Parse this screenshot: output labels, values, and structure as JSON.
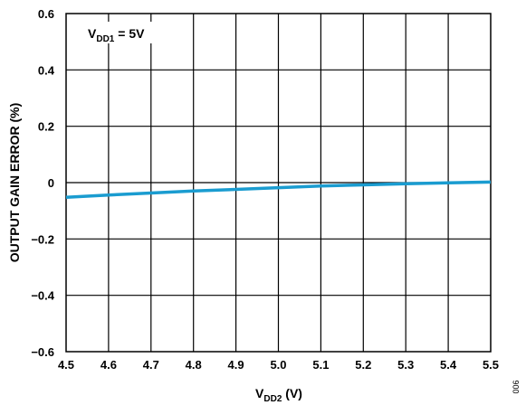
{
  "chart_data": {
    "type": "line",
    "xlabel": {
      "base": "V",
      "sub": "DD2",
      "suffix": " (V)"
    },
    "ylabel": "OUTPUT GAIN ERROR (%)",
    "annotation": {
      "base": "V",
      "sub": "DD1",
      "suffix": " = 5V"
    },
    "figure_id": "006",
    "xlim": [
      4.5,
      5.5
    ],
    "ylim": [
      -0.6,
      0.6
    ],
    "x_ticks": [
      "4.5",
      "4.6",
      "4.7",
      "4.8",
      "4.9",
      "5.0",
      "5.1",
      "5.2",
      "5.3",
      "5.4",
      "5.5"
    ],
    "y_ticks": [
      "0.6",
      "0.4",
      "0.2",
      "0",
      "−0.2",
      "−0.4",
      "−0.6"
    ],
    "grid": true,
    "series": [
      {
        "color": "#1a9cd0",
        "x": [
          4.5,
          4.6,
          4.7,
          4.8,
          4.9,
          5.0,
          5.1,
          5.2,
          5.3,
          5.4,
          5.5
        ],
        "y": [
          -0.052,
          -0.044,
          -0.037,
          -0.03,
          -0.024,
          -0.018,
          -0.012,
          -0.008,
          -0.004,
          -0.001,
          0.002
        ]
      }
    ]
  }
}
